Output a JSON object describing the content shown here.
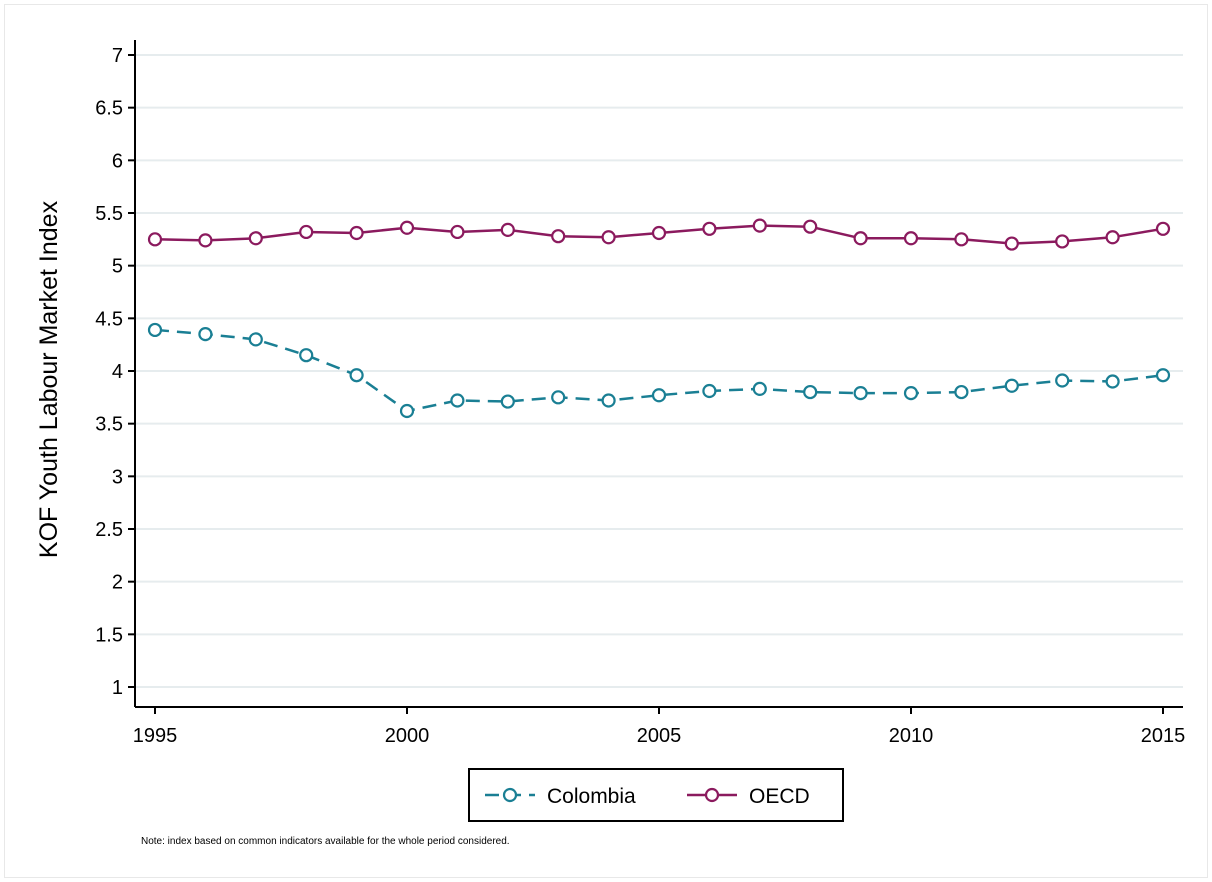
{
  "chart_data": {
    "type": "line",
    "title": "",
    "xlabel": "",
    "ylabel": "KOF Youth Labour Market Index",
    "xlim": [
      1995,
      2015
    ],
    "ylim": [
      1,
      7
    ],
    "x_ticks": [
      1995,
      2000,
      2005,
      2010,
      2015
    ],
    "y_ticks": [
      1,
      1.5,
      2,
      2.5,
      3,
      3.5,
      4,
      4.5,
      5,
      5.5,
      6,
      6.5,
      7
    ],
    "grid": true,
    "legend_position": "bottom",
    "x": [
      1995,
      1996,
      1997,
      1998,
      1999,
      2000,
      2001,
      2002,
      2003,
      2004,
      2005,
      2006,
      2007,
      2008,
      2009,
      2010,
      2011,
      2012,
      2013,
      2014,
      2015
    ],
    "series": [
      {
        "name": "Colombia",
        "color": "#1a7f94",
        "line_style": "dashed",
        "marker": "hollow-circle",
        "values": [
          4.39,
          4.35,
          4.3,
          4.15,
          3.96,
          3.62,
          3.72,
          3.71,
          3.75,
          3.72,
          3.77,
          3.81,
          3.83,
          3.8,
          3.79,
          3.79,
          3.8,
          3.86,
          3.91,
          3.9,
          3.96
        ]
      },
      {
        "name": "OECD",
        "color": "#8b1a5e",
        "line_style": "solid",
        "marker": "hollow-circle",
        "values": [
          5.25,
          5.24,
          5.26,
          5.32,
          5.31,
          5.36,
          5.32,
          5.34,
          5.28,
          5.27,
          5.31,
          5.35,
          5.38,
          5.37,
          5.26,
          5.26,
          5.25,
          5.21,
          5.23,
          5.27,
          5.35
        ]
      }
    ],
    "note": "Note: index based on common indicators available for the whole period considered."
  }
}
